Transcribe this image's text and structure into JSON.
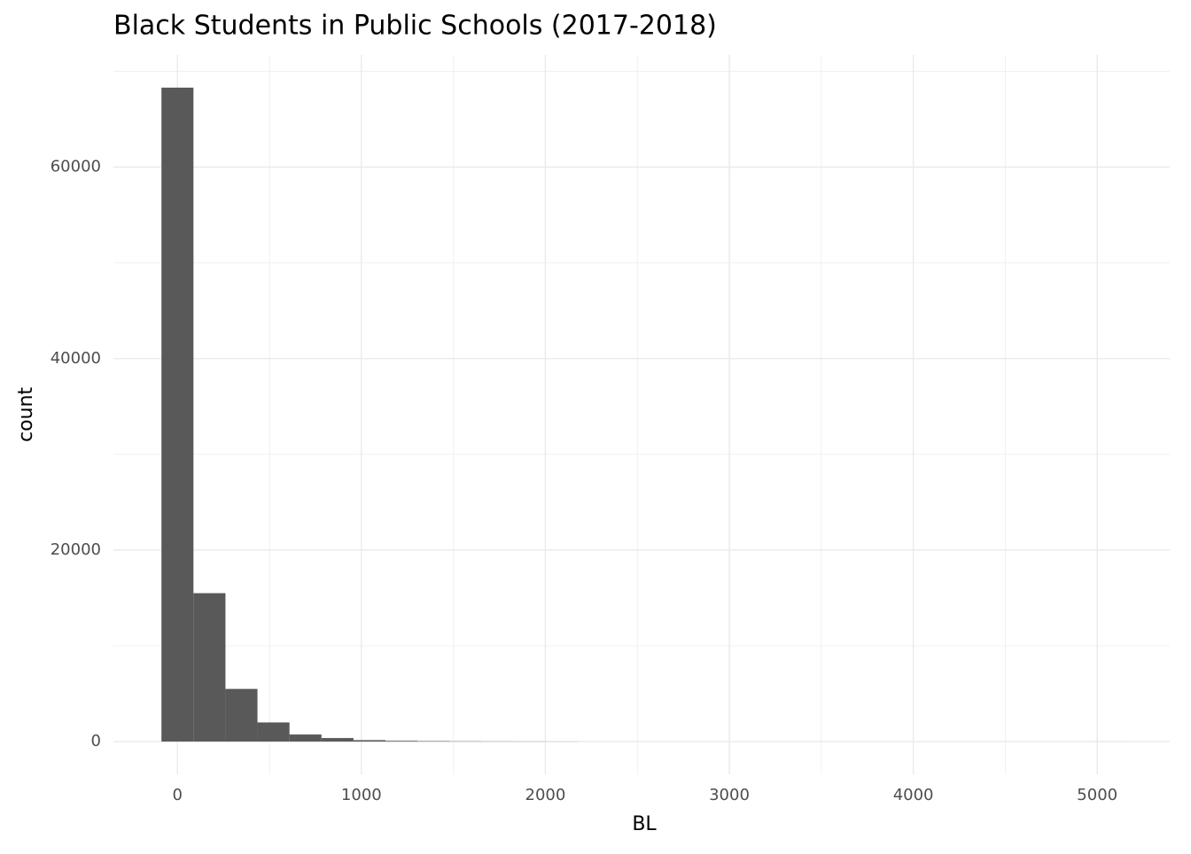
{
  "chart_data": {
    "type": "histogram",
    "title": "Black Students in Public Schools (2017-2018)",
    "x_label": "BL",
    "y_label": "count",
    "bins": [
      -87,
      87,
      261,
      435,
      609,
      783,
      957,
      1131,
      1305,
      1479,
      1653,
      1827,
      2001,
      2175,
      2349,
      2523,
      2697,
      2871,
      3045,
      3219,
      3393,
      3567,
      3741,
      3915,
      4089,
      4263,
      4437,
      4611,
      4785,
      4959,
      5133
    ],
    "values": [
      68300,
      15500,
      5500,
      2000,
      740,
      370,
      150,
      80,
      50,
      30,
      20,
      15,
      10,
      0,
      0,
      0,
      0,
      0,
      0,
      0,
      0,
      0,
      0,
      0,
      0,
      0,
      0,
      0,
      0,
      1
    ],
    "color": "#595959",
    "xlim": [
      -348,
      5394
    ],
    "xticks": [
      0,
      1000,
      2000,
      3000,
      4000,
      5000
    ],
    "ylim": [
      -3415,
      71715
    ],
    "yticks": [
      0,
      20000,
      40000,
      60000
    ],
    "grid": true
  }
}
